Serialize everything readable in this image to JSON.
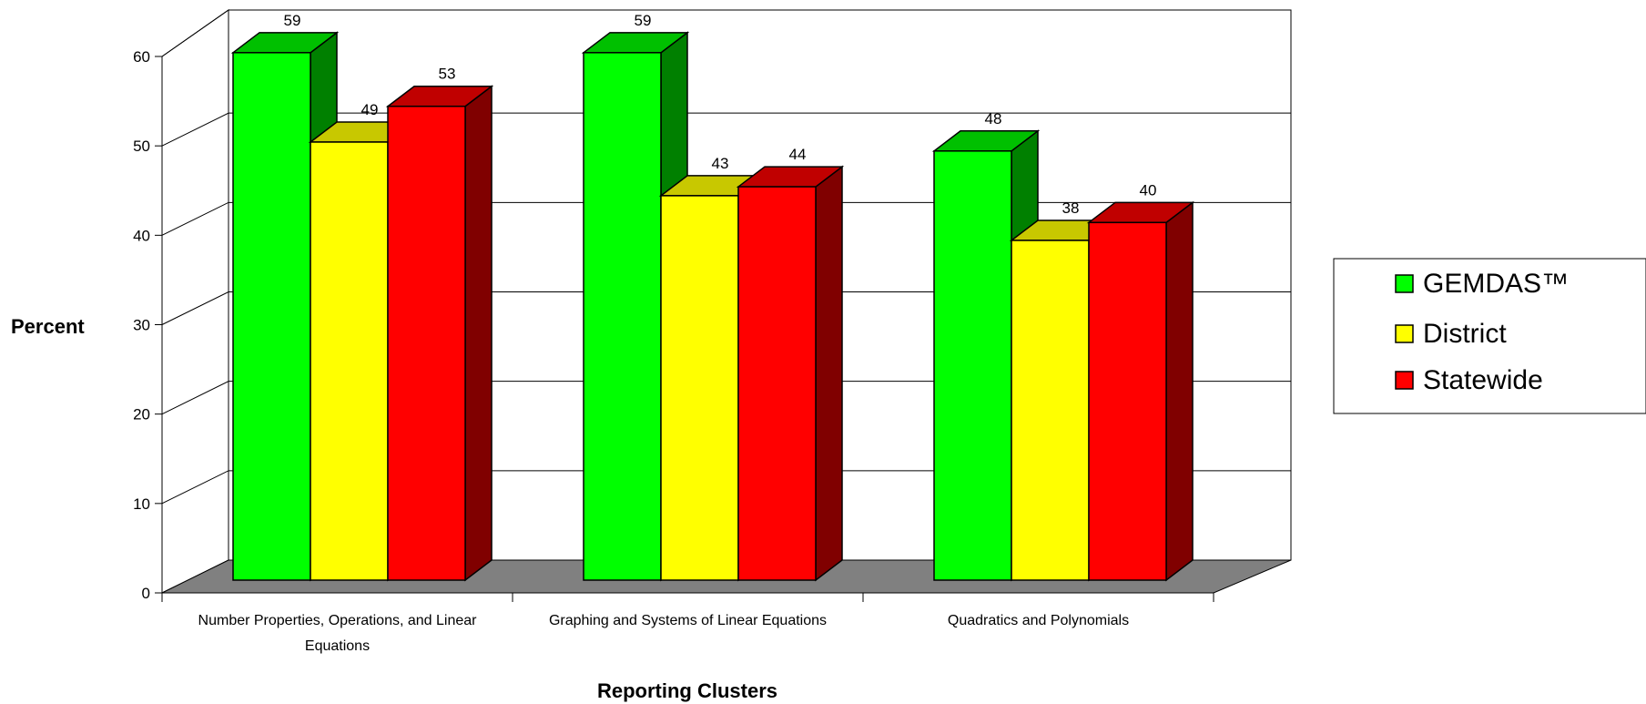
{
  "chart_data": {
    "type": "bar",
    "title": "",
    "xlabel": "Reporting Clusters",
    "ylabel": "Percent",
    "ylim": [
      0,
      60
    ],
    "yticks": [
      0,
      10,
      20,
      30,
      40,
      50,
      60
    ],
    "grid": true,
    "legend_position": "right",
    "style": "3d-clustered-column",
    "categories": [
      [
        "Number Properties, Operations, and Linear",
        "Equations"
      ],
      [
        "Graphing and Systems of Linear Equations"
      ],
      [
        "Quadratics and Polynomials"
      ]
    ],
    "series": [
      {
        "name": "GEMDAS™",
        "values": [
          59,
          59,
          48
        ],
        "color": "#00ff00",
        "side_color": "#008000",
        "top_color": "#00c000"
      },
      {
        "name": "District",
        "values": [
          49,
          43,
          38
        ],
        "color": "#ffff00",
        "side_color": "#808000",
        "top_color": "#c8c800"
      },
      {
        "name": "Statewide",
        "values": [
          53,
          44,
          40
        ],
        "color": "#ff0000",
        "side_color": "#800000",
        "top_color": "#c00000"
      }
    ],
    "floor_color": "#808080"
  }
}
